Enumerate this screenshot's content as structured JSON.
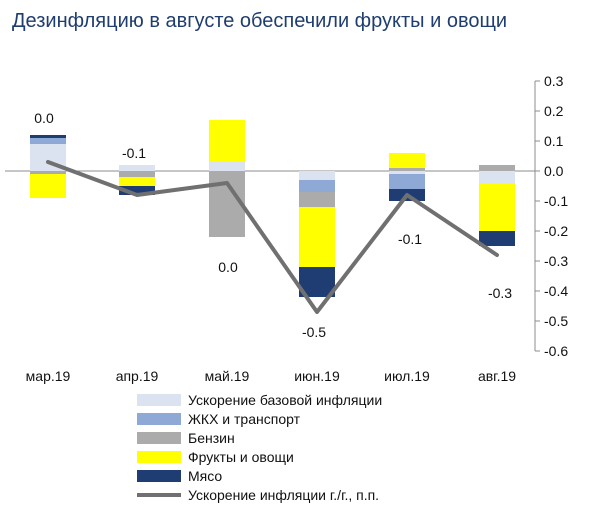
{
  "chart_data": {
    "type": "bar",
    "title": "Дезинфляцию в августе обеспечили фрукты и овощи",
    "categories": [
      "мар.19",
      "апр.19",
      "май.19",
      "июн.19",
      "июл.19",
      "авг.19"
    ],
    "ylim": [
      -0.6,
      0.3
    ],
    "y_ticks": [
      "0.3",
      "0.2",
      "0.1",
      "0.0",
      "-0.1",
      "-0.2",
      "-0.3",
      "-0.4",
      "-0.5",
      "-0.6"
    ],
    "y_axis_position": "right",
    "grid": false,
    "legend_position": "bottom",
    "series": [
      {
        "name": "Ускорение базовой инфляции",
        "color": "#dbe3f1",
        "values": [
          0.09,
          0.02,
          0.03,
          -0.03,
          -0.01,
          -0.04
        ]
      },
      {
        "name": "ЖКХ и транспорт",
        "color": "#8fa9d6",
        "values": [
          0.02,
          0.0,
          0.0,
          -0.04,
          -0.05,
          0.0
        ]
      },
      {
        "name": "Бензин",
        "color": "#ababab",
        "values": [
          -0.01,
          -0.02,
          -0.22,
          -0.05,
          0.01,
          0.02
        ]
      },
      {
        "name": "Фрукты и овощи",
        "color": "#ffff00",
        "values": [
          -0.08,
          -0.03,
          0.14,
          -0.2,
          0.05,
          -0.16
        ]
      },
      {
        "name": "Мясо",
        "color": "#1f3d73",
        "values": [
          0.01,
          -0.03,
          0.0,
          -0.1,
          -0.04,
          -0.05
        ]
      }
    ],
    "line": {
      "name": "Ускорение инфляции г./г., п.п.",
      "color": "#707070",
      "values": [
        0.03,
        -0.08,
        -0.04,
        -0.47,
        -0.08,
        -0.28
      ]
    },
    "data_labels": [
      "0.0",
      "-0.1",
      "0.0",
      "-0.5",
      "-0.1",
      "-0.3"
    ]
  }
}
